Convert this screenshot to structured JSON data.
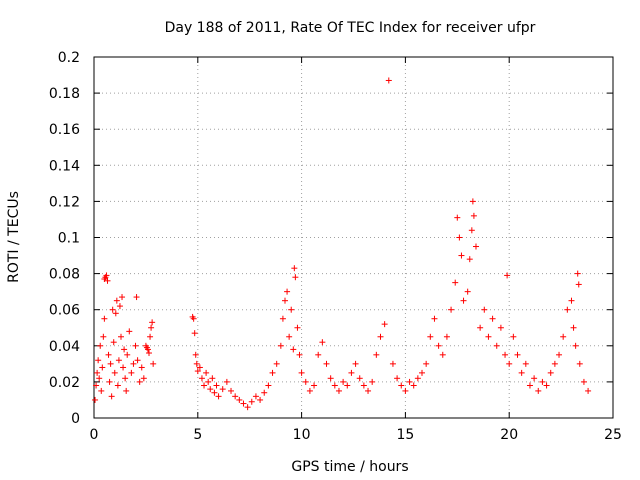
{
  "chart_data": {
    "type": "scatter",
    "title": "Day 188 of 2011, Rate Of TEC Index for receiver ufpr",
    "xlabel": "GPS time / hours",
    "ylabel": "ROTI / TECUs",
    "xlim": [
      0,
      25
    ],
    "ylim": [
      0,
      0.2
    ],
    "xticks": [
      0,
      5,
      10,
      15,
      20,
      25
    ],
    "xtick_labels": [
      "0",
      "5",
      "10",
      "15",
      "20",
      "25"
    ],
    "yticks": [
      0,
      0.02,
      0.04,
      0.06,
      0.08,
      0.1,
      0.12,
      0.14,
      0.16,
      0.18,
      0.2
    ],
    "ytick_labels": [
      "0",
      "0.02",
      "0.04",
      "0.06",
      "0.08",
      "0.1",
      "0.12",
      "0.14",
      "0.16",
      "0.18",
      "0.2"
    ],
    "grid": true,
    "marker": "+",
    "color": "#ff0000",
    "series": [
      {
        "points": [
          [
            0.05,
            0.01
          ],
          [
            0.1,
            0.018
          ],
          [
            0.15,
            0.025
          ],
          [
            0.2,
            0.032
          ],
          [
            0.25,
            0.022
          ],
          [
            0.3,
            0.04
          ],
          [
            0.35,
            0.015
          ],
          [
            0.4,
            0.028
          ],
          [
            0.45,
            0.045
          ],
          [
            0.5,
            0.055
          ],
          [
            0.5,
            0.077
          ],
          [
            0.55,
            0.078
          ],
          [
            0.6,
            0.079
          ],
          [
            0.65,
            0.076
          ],
          [
            0.7,
            0.035
          ],
          [
            0.75,
            0.02
          ],
          [
            0.8,
            0.03
          ],
          [
            0.85,
            0.012
          ],
          [
            0.9,
            0.06
          ],
          [
            0.95,
            0.042
          ],
          [
            1.0,
            0.025
          ],
          [
            1.05,
            0.058
          ],
          [
            1.1,
            0.065
          ],
          [
            1.15,
            0.018
          ],
          [
            1.2,
            0.032
          ],
          [
            1.25,
            0.062
          ],
          [
            1.3,
            0.045
          ],
          [
            1.35,
            0.067
          ],
          [
            1.4,
            0.028
          ],
          [
            1.45,
            0.038
          ],
          [
            1.5,
            0.022
          ],
          [
            1.55,
            0.015
          ],
          [
            1.6,
            0.035
          ],
          [
            1.7,
            0.048
          ],
          [
            1.8,
            0.025
          ],
          [
            1.9,
            0.03
          ],
          [
            2.0,
            0.04
          ],
          [
            2.05,
            0.067
          ],
          [
            2.1,
            0.032
          ],
          [
            2.2,
            0.02
          ],
          [
            2.3,
            0.028
          ],
          [
            2.4,
            0.022
          ],
          [
            2.5,
            0.04
          ],
          [
            2.55,
            0.039
          ],
          [
            2.6,
            0.038
          ],
          [
            2.65,
            0.036
          ],
          [
            2.7,
            0.045
          ],
          [
            2.75,
            0.05
          ],
          [
            2.8,
            0.053
          ],
          [
            2.85,
            0.03
          ],
          [
            4.75,
            0.056
          ],
          [
            4.8,
            0.055
          ],
          [
            4.85,
            0.047
          ],
          [
            4.9,
            0.035
          ],
          [
            4.95,
            0.03
          ],
          [
            5.0,
            0.026
          ],
          [
            5.1,
            0.028
          ],
          [
            5.2,
            0.022
          ],
          [
            5.3,
            0.018
          ],
          [
            5.4,
            0.025
          ],
          [
            5.5,
            0.02
          ],
          [
            5.6,
            0.016
          ],
          [
            5.7,
            0.022
          ],
          [
            5.8,
            0.014
          ],
          [
            5.9,
            0.018
          ],
          [
            6.0,
            0.012
          ],
          [
            6.2,
            0.016
          ],
          [
            6.4,
            0.02
          ],
          [
            6.6,
            0.015
          ],
          [
            6.8,
            0.012
          ],
          [
            7.0,
            0.01
          ],
          [
            7.2,
            0.008
          ],
          [
            7.4,
            0.006
          ],
          [
            7.6,
            0.009
          ],
          [
            7.8,
            0.012
          ],
          [
            8.0,
            0.01
          ],
          [
            8.2,
            0.014
          ],
          [
            8.4,
            0.018
          ],
          [
            8.6,
            0.025
          ],
          [
            8.8,
            0.03
          ],
          [
            9.0,
            0.04
          ],
          [
            9.1,
            0.055
          ],
          [
            9.2,
            0.065
          ],
          [
            9.3,
            0.07
          ],
          [
            9.4,
            0.045
          ],
          [
            9.5,
            0.06
          ],
          [
            9.6,
            0.038
          ],
          [
            9.65,
            0.083
          ],
          [
            9.7,
            0.078
          ],
          [
            9.8,
            0.05
          ],
          [
            9.9,
            0.035
          ],
          [
            10.0,
            0.025
          ],
          [
            10.2,
            0.02
          ],
          [
            10.4,
            0.015
          ],
          [
            10.6,
            0.018
          ],
          [
            10.8,
            0.035
          ],
          [
            11.0,
            0.042
          ],
          [
            11.2,
            0.03
          ],
          [
            11.4,
            0.022
          ],
          [
            11.6,
            0.018
          ],
          [
            11.8,
            0.015
          ],
          [
            12.0,
            0.02
          ],
          [
            12.2,
            0.018
          ],
          [
            12.4,
            0.025
          ],
          [
            12.6,
            0.03
          ],
          [
            12.8,
            0.022
          ],
          [
            13.0,
            0.018
          ],
          [
            13.2,
            0.015
          ],
          [
            13.4,
            0.02
          ],
          [
            13.6,
            0.035
          ],
          [
            13.8,
            0.045
          ],
          [
            14.0,
            0.052
          ],
          [
            14.2,
            0.187
          ],
          [
            14.4,
            0.03
          ],
          [
            14.6,
            0.022
          ],
          [
            14.8,
            0.018
          ],
          [
            15.0,
            0.015
          ],
          [
            15.2,
            0.02
          ],
          [
            15.4,
            0.018
          ],
          [
            15.6,
            0.022
          ],
          [
            15.8,
            0.025
          ],
          [
            16.0,
            0.03
          ],
          [
            16.2,
            0.045
          ],
          [
            16.4,
            0.055
          ],
          [
            16.6,
            0.04
          ],
          [
            16.8,
            0.035
          ],
          [
            17.0,
            0.045
          ],
          [
            17.2,
            0.06
          ],
          [
            17.4,
            0.075
          ],
          [
            17.5,
            0.111
          ],
          [
            17.6,
            0.1
          ],
          [
            17.7,
            0.09
          ],
          [
            17.8,
            0.065
          ],
          [
            18.0,
            0.07
          ],
          [
            18.1,
            0.088
          ],
          [
            18.2,
            0.104
          ],
          [
            18.25,
            0.12
          ],
          [
            18.3,
            0.112
          ],
          [
            18.4,
            0.095
          ],
          [
            18.6,
            0.05
          ],
          [
            18.8,
            0.06
          ],
          [
            19.0,
            0.045
          ],
          [
            19.2,
            0.055
          ],
          [
            19.4,
            0.04
          ],
          [
            19.6,
            0.05
          ],
          [
            19.8,
            0.035
          ],
          [
            19.9,
            0.079
          ],
          [
            20.0,
            0.03
          ],
          [
            20.2,
            0.045
          ],
          [
            20.4,
            0.035
          ],
          [
            20.6,
            0.025
          ],
          [
            20.8,
            0.03
          ],
          [
            21.0,
            0.018
          ],
          [
            21.2,
            0.022
          ],
          [
            21.4,
            0.015
          ],
          [
            21.6,
            0.02
          ],
          [
            21.8,
            0.018
          ],
          [
            22.0,
            0.025
          ],
          [
            22.2,
            0.03
          ],
          [
            22.4,
            0.035
          ],
          [
            22.6,
            0.045
          ],
          [
            22.8,
            0.06
          ],
          [
            23.0,
            0.065
          ],
          [
            23.1,
            0.05
          ],
          [
            23.2,
            0.04
          ],
          [
            23.3,
            0.08
          ],
          [
            23.35,
            0.074
          ],
          [
            23.4,
            0.03
          ],
          [
            23.6,
            0.02
          ],
          [
            23.8,
            0.015
          ]
        ]
      }
    ]
  }
}
